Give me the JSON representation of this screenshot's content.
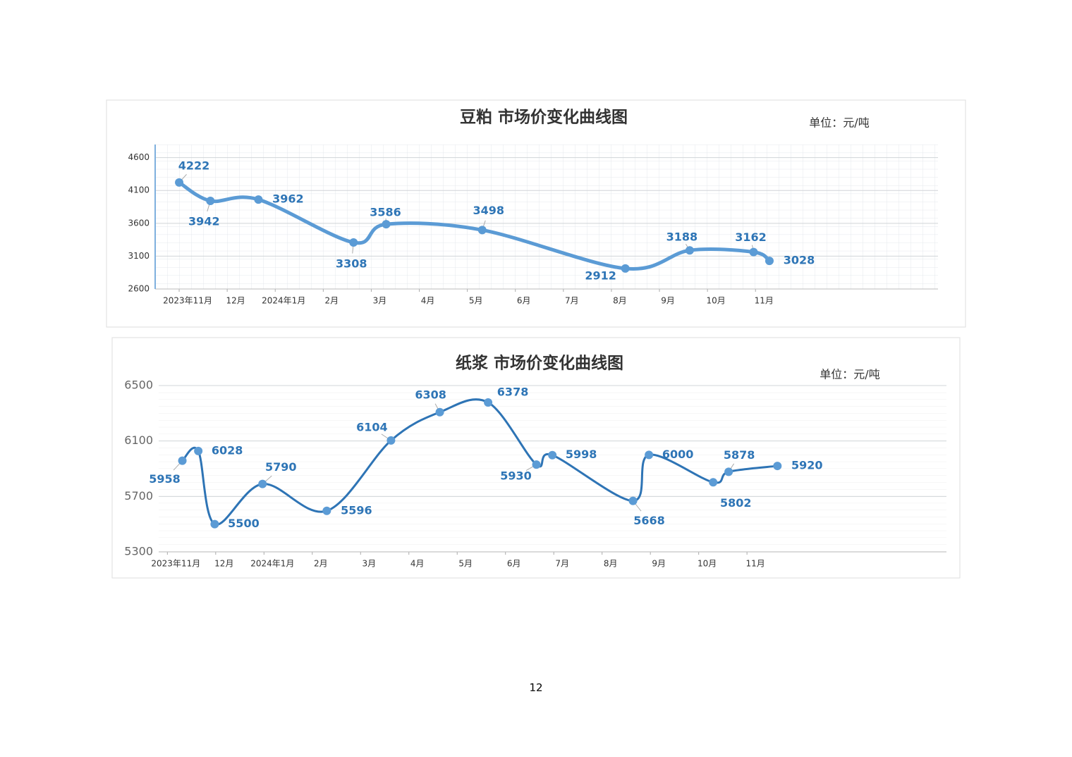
{
  "chart_data": [
    {
      "type": "line",
      "title": "豆粕 市场价变化曲线图",
      "unit": "单位：元/吨",
      "color": "#5b9bd5",
      "grid": true,
      "x": [
        0.0,
        0.65,
        1.65,
        3.63,
        4.31,
        6.31,
        9.29,
        10.63,
        11.96,
        12.29
      ],
      "values": [
        4222,
        3942,
        3962,
        3308,
        3586,
        3498,
        2912,
        3188,
        3162,
        3028
      ],
      "xlim": [
        -0.5,
        15.8
      ],
      "xticks": [
        {
          "value": 0,
          "label": "2023年11月"
        },
        {
          "value": 1,
          "label": "12月"
        },
        {
          "value": 2,
          "label": "2024年1月"
        },
        {
          "value": 3,
          "label": "2月"
        },
        {
          "value": 4,
          "label": "3月"
        },
        {
          "value": 5,
          "label": "4月"
        },
        {
          "value": 6,
          "label": "5月"
        },
        {
          "value": 7,
          "label": "6月"
        },
        {
          "value": 8,
          "label": "7月"
        },
        {
          "value": 9,
          "label": "8月"
        },
        {
          "value": 10,
          "label": "9月"
        },
        {
          "value": 11,
          "label": "10月"
        },
        {
          "value": 12,
          "label": "11月"
        }
      ],
      "ylim": [
        2600,
        4800
      ],
      "yticks": [
        2600,
        3100,
        3600,
        4100,
        4600
      ]
    },
    {
      "type": "line",
      "title": "纸浆 市场价变化曲线图",
      "unit": "单位：元/吨",
      "color": "#2e74b5",
      "grid": true,
      "x": [
        0.31,
        0.64,
        0.98,
        1.97,
        3.3,
        4.63,
        5.64,
        6.64,
        7.64,
        7.97,
        9.64,
        9.97,
        11.3,
        11.62,
        12.63
      ],
      "values": [
        5958,
        6028,
        5500,
        5790,
        5596,
        6104,
        6308,
        6378,
        5930,
        5998,
        5668,
        6000,
        5802,
        5878,
        5920
      ],
      "xlim": [
        -0.18,
        16.13
      ],
      "xticks": [
        {
          "value": 0,
          "label": "2023年11月"
        },
        {
          "value": 1,
          "label": "12月"
        },
        {
          "value": 2,
          "label": "2024年1月"
        },
        {
          "value": 3,
          "label": "2月"
        },
        {
          "value": 4,
          "label": "3月"
        },
        {
          "value": 5,
          "label": "4月"
        },
        {
          "value": 6,
          "label": "5月"
        },
        {
          "value": 7,
          "label": "6月"
        },
        {
          "value": 8,
          "label": "7月"
        },
        {
          "value": 9,
          "label": "8月"
        },
        {
          "value": 10,
          "label": "9月"
        },
        {
          "value": 11,
          "label": "10月"
        },
        {
          "value": 12,
          "label": "11月"
        }
      ],
      "ylim": [
        5300,
        6500
      ],
      "yticks": [
        5300,
        5700,
        6100,
        6500
      ]
    }
  ],
  "page_number": "12"
}
